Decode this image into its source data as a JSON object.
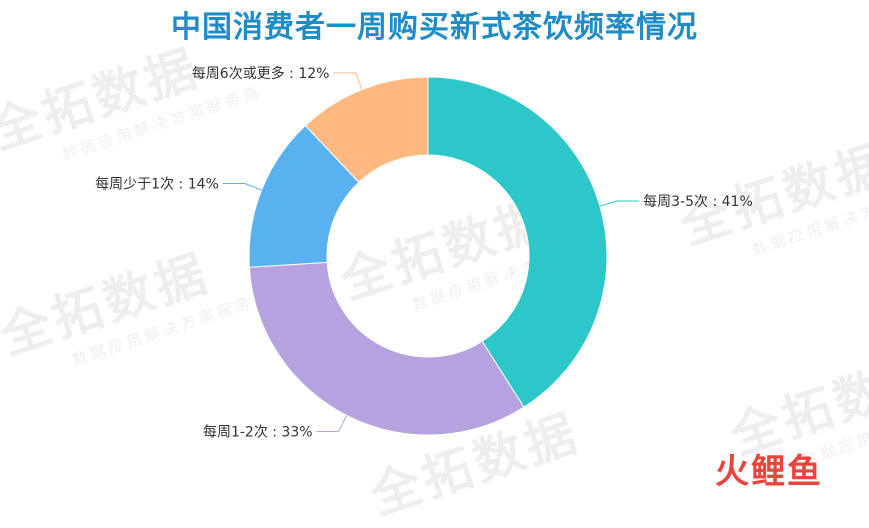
{
  "title": "中国消费者一周购买新式茶饮频率情况",
  "title_color": "#1f8cc8",
  "watermark": {
    "brand": "全拓数据",
    "tagline": "数据应用解决方案服务商"
  },
  "logo": {
    "text": "火鲤鱼",
    "color_fire": "#e8453c",
    "color_fish": "#e8453c"
  },
  "chart_data": {
    "type": "pie",
    "style": "donut",
    "slices": [
      {
        "label": "每周3-5次",
        "value": 41,
        "color": "#2ec7c9",
        "display": "每周3-5次 : 41%"
      },
      {
        "label": "每周1-2次",
        "value": 33,
        "color": "#b6a2de",
        "display": "每周1-2次 : 33%"
      },
      {
        "label": "每周少于1次",
        "value": 14,
        "color": "#5ab1ef",
        "display": "每周少于1次 : 14%"
      },
      {
        "label": "每周6次或更多",
        "value": 12,
        "color": "#ffb980",
        "display": "每周6次或更多 : 12%"
      }
    ],
    "legend": "none",
    "label_color": "#333333"
  }
}
